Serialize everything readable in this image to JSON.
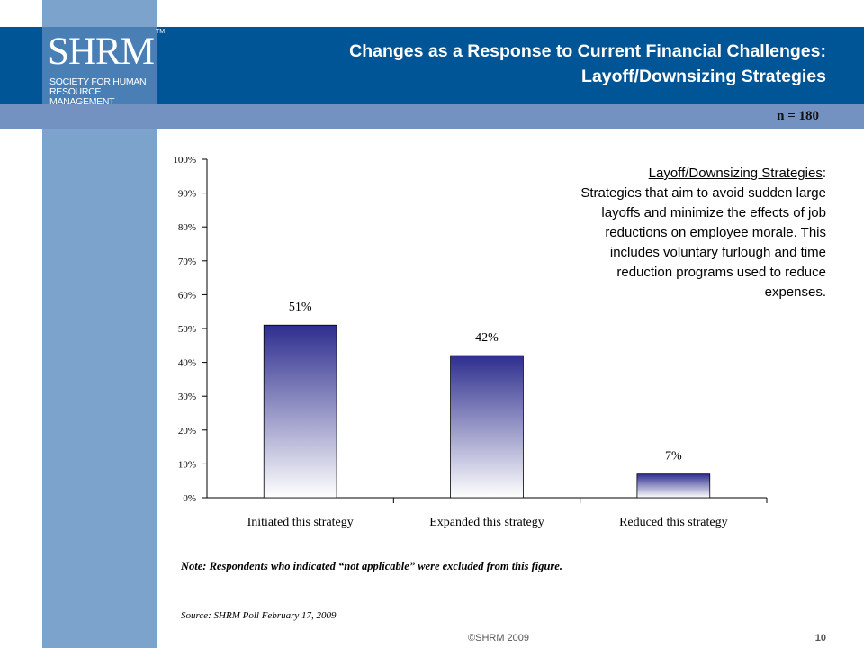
{
  "header": {
    "title_line1": "Changes as a Response to Current Financial Challenges:",
    "title_line2": "Layoff/Downsizing Strategies"
  },
  "logo": {
    "word": "SHRM",
    "tm": "TM",
    "sub_line1": "SOCIETY FOR HUMAN",
    "sub_line2": "RESOURCE MANAGEMENT"
  },
  "sample": "n = 180",
  "definition": {
    "term": "Layoff/Downsizing Strategies",
    "colon": ":",
    "text": "Strategies that aim to avoid sudden large layoffs and minimize the effects of job reductions on employee morale. This includes voluntary furlough and time reduction programs used to reduce expenses."
  },
  "note": "Note: Respondents who indicated “not applicable” were excluded from this figure.",
  "source": "Source: SHRM Poll February 17, 2009",
  "footer": {
    "copyright": "©SHRM 2009",
    "page": "10"
  },
  "colors": {
    "bar_top": "#2e2e8f",
    "bar_bottom": "#ffffff",
    "header": "#005596",
    "strip": "#7ba3cc"
  },
  "chart_data": {
    "type": "bar",
    "categories": [
      "Initiated this strategy",
      "Expanded this strategy",
      "Reduced this strategy"
    ],
    "values": [
      51,
      42,
      7
    ],
    "value_labels": [
      "51%",
      "42%",
      "7%"
    ],
    "ylim": [
      0,
      100
    ],
    "yticks": [
      0,
      10,
      20,
      30,
      40,
      50,
      60,
      70,
      80,
      90,
      100
    ],
    "ytick_labels": [
      "0%",
      "10%",
      "20%",
      "30%",
      "40%",
      "50%",
      "60%",
      "70%",
      "80%",
      "90%",
      "100%"
    ],
    "grid": false,
    "legend": "none"
  }
}
